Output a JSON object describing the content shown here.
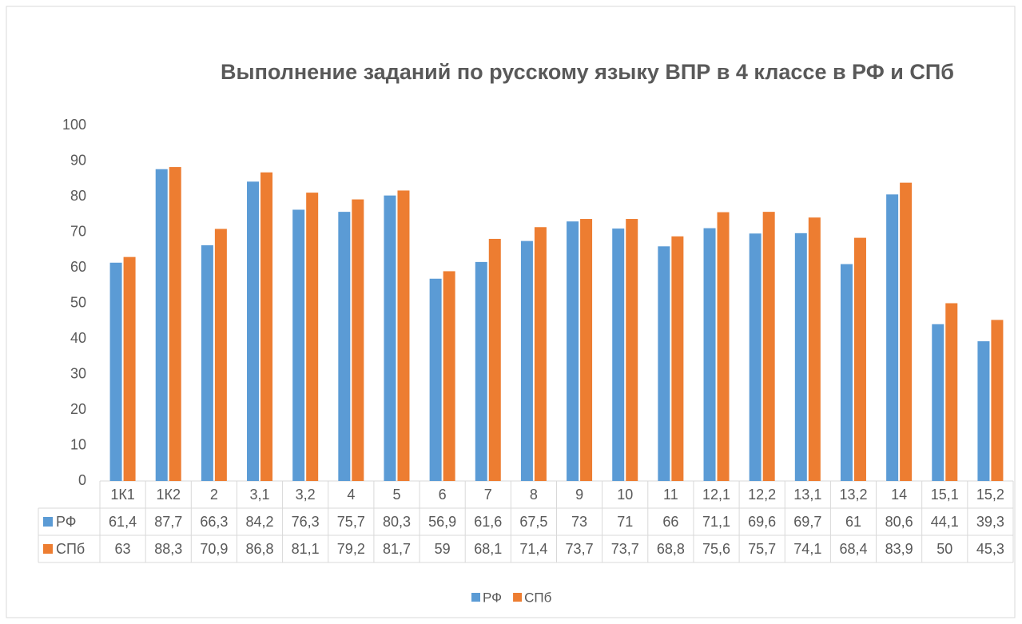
{
  "chart_data": {
    "type": "bar",
    "title": "Выполнение заданий по русскому языку ВПР в 4 классе в РФ и СПб",
    "categories": [
      "1К1",
      "1К2",
      "2",
      "3,1",
      "3,2",
      "4",
      "5",
      "6",
      "7",
      "8",
      "9",
      "10",
      "11",
      "12,1",
      "12,2",
      "13,1",
      "13,2",
      "14",
      "15,1",
      "15,2"
    ],
    "series": [
      {
        "name": "РФ",
        "color": "#5b9bd5",
        "values": [
          61.4,
          87.7,
          66.3,
          84.2,
          76.3,
          75.7,
          80.3,
          56.9,
          61.6,
          67.5,
          73,
          71,
          66,
          71.1,
          69.6,
          69.7,
          61,
          80.6,
          44.1,
          39.3
        ],
        "value_labels": [
          "61,4",
          "87,7",
          "66,3",
          "84,2",
          "76,3",
          "75,7",
          "80,3",
          "56,9",
          "61,6",
          "67,5",
          "73",
          "71",
          "66",
          "71,1",
          "69,6",
          "69,7",
          "61",
          "80,6",
          "44,1",
          "39,3"
        ]
      },
      {
        "name": "СПб",
        "color": "#ed7d31",
        "values": [
          63,
          88.3,
          70.9,
          86.8,
          81.1,
          79.2,
          81.7,
          59,
          68.1,
          71.4,
          73.7,
          73.7,
          68.8,
          75.6,
          75.7,
          74.1,
          68.4,
          83.9,
          50,
          45.3
        ],
        "value_labels": [
          "63",
          "88,3",
          "70,9",
          "86,8",
          "81,1",
          "79,2",
          "81,7",
          "59",
          "68,1",
          "71,4",
          "73,7",
          "73,7",
          "68,8",
          "75,6",
          "75,7",
          "74,1",
          "68,4",
          "83,9",
          "50",
          "45,3"
        ]
      }
    ],
    "ylim": [
      0,
      100
    ],
    "yticks": [
      0,
      10,
      20,
      30,
      40,
      50,
      60,
      70,
      80,
      90,
      100
    ],
    "grid": false
  }
}
